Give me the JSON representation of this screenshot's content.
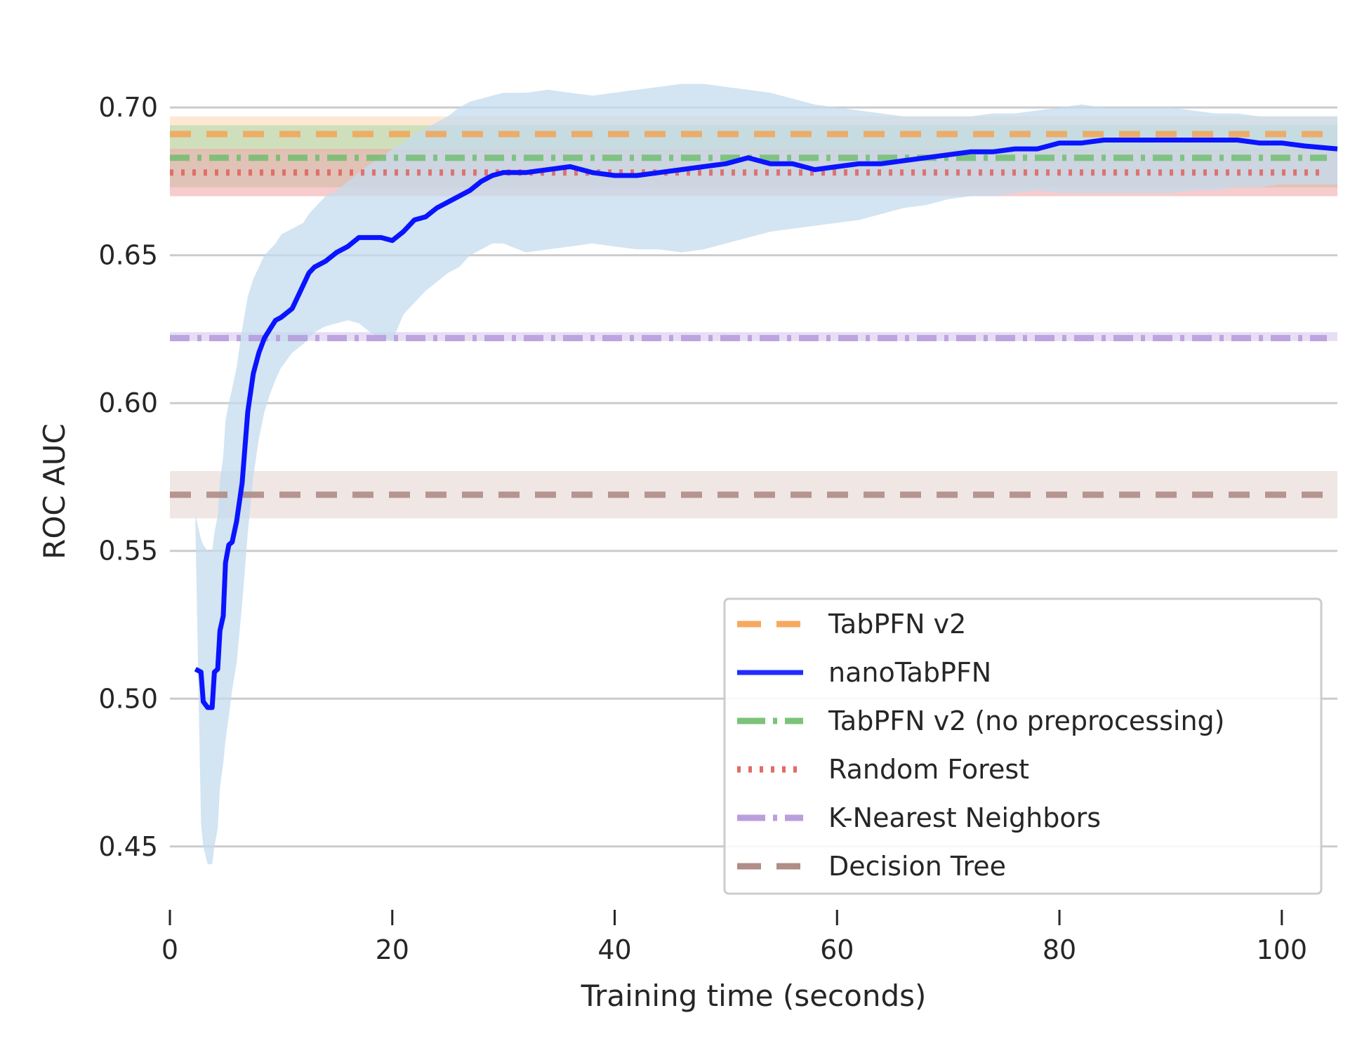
{
  "chart_data": {
    "type": "line",
    "title": "",
    "xlabel": "Training time (seconds)",
    "ylabel": "ROC AUC",
    "xlim": [
      0,
      105
    ],
    "ylim": [
      0.43,
      0.715
    ],
    "x_ticks": [
      0,
      20,
      40,
      60,
      80,
      100
    ],
    "x_tick_labels": [
      "0",
      "20",
      "40",
      "60",
      "80",
      "100"
    ],
    "y_ticks": [
      0.45,
      0.5,
      0.55,
      0.6,
      0.65,
      0.7
    ],
    "y_tick_labels": [
      "0.45",
      "0.50",
      "0.55",
      "0.60",
      "0.65",
      "0.70"
    ],
    "grid": "horizontal",
    "legend_position": "lower-right",
    "baselines": [
      {
        "name": "TabPFN v2",
        "value": 0.691,
        "band": [
          0.685,
          0.697
        ],
        "color": "#f5a04e",
        "band_color": "#fdd5b0",
        "dash": "dashed"
      },
      {
        "name": "TabPFN v2 (no preprocessing)",
        "value": 0.683,
        "band": [
          0.673,
          0.694
        ],
        "color": "#6bbd6a",
        "band_color": "#a8d7a8",
        "dash": "dashdot"
      },
      {
        "name": "Random Forest",
        "value": 0.678,
        "band": [
          0.67,
          0.686
        ],
        "color": "#e05a57",
        "band_color": "#f0a3a2",
        "dash": "dotted"
      },
      {
        "name": "K-Nearest Neighbors",
        "value": 0.622,
        "band": [
          0.621,
          0.624
        ],
        "color": "#b295d8",
        "band_color": "#d4c3ec",
        "dash": "dashdot"
      },
      {
        "name": "Decision Tree",
        "value": 0.569,
        "band": [
          0.561,
          0.577
        ],
        "color": "#a8817a",
        "band_color": "#e4d3cf",
        "dash": "dashed"
      }
    ],
    "series": [
      {
        "name": "nanoTabPFN",
        "color": "#0a14ff",
        "band_color": "#c4dbed",
        "x": [
          2.3,
          2.8,
          3.0,
          3.4,
          3.8,
          4.0,
          4.3,
          4.5,
          4.8,
          5.0,
          5.3,
          5.6,
          6.0,
          6.5,
          7.0,
          7.5,
          8.0,
          8.5,
          9.0,
          9.5,
          10,
          11,
          12,
          12.5,
          13,
          14,
          15,
          16,
          17,
          18,
          19,
          20,
          21,
          22,
          23,
          24,
          25,
          26,
          27,
          28,
          29,
          30,
          32,
          34,
          36,
          38,
          40,
          42,
          44,
          46,
          48,
          50,
          52,
          54,
          56,
          58,
          60,
          62,
          64,
          66,
          68,
          70,
          72,
          74,
          76,
          78,
          80,
          82,
          84,
          86,
          88,
          90,
          92,
          94,
          96,
          98,
          100,
          102,
          105
        ],
        "values": [
          0.51,
          0.509,
          0.499,
          0.497,
          0.497,
          0.509,
          0.51,
          0.523,
          0.528,
          0.546,
          0.552,
          0.553,
          0.56,
          0.573,
          0.597,
          0.61,
          0.617,
          0.622,
          0.625,
          0.628,
          0.629,
          0.632,
          0.64,
          0.644,
          0.646,
          0.648,
          0.651,
          0.653,
          0.656,
          0.656,
          0.656,
          0.655,
          0.658,
          0.662,
          0.663,
          0.666,
          0.668,
          0.67,
          0.672,
          0.675,
          0.677,
          0.678,
          0.678,
          0.679,
          0.68,
          0.678,
          0.677,
          0.677,
          0.678,
          0.679,
          0.68,
          0.681,
          0.683,
          0.681,
          0.681,
          0.679,
          0.68,
          0.681,
          0.681,
          0.682,
          0.683,
          0.684,
          0.685,
          0.685,
          0.686,
          0.686,
          0.688,
          0.688,
          0.689,
          0.689,
          0.689,
          0.689,
          0.689,
          0.689,
          0.689,
          0.688,
          0.688,
          0.687,
          0.686
        ],
        "lower": [
          0.558,
          0.458,
          0.45,
          0.444,
          0.444,
          0.45,
          0.456,
          0.47,
          0.478,
          0.486,
          0.494,
          0.503,
          0.512,
          0.532,
          0.556,
          0.575,
          0.588,
          0.597,
          0.603,
          0.608,
          0.612,
          0.617,
          0.62,
          0.622,
          0.624,
          0.626,
          0.627,
          0.628,
          0.627,
          0.624,
          0.622,
          0.621,
          0.63,
          0.634,
          0.638,
          0.641,
          0.644,
          0.646,
          0.65,
          0.652,
          0.654,
          0.654,
          0.651,
          0.652,
          0.653,
          0.654,
          0.653,
          0.652,
          0.652,
          0.651,
          0.652,
          0.654,
          0.656,
          0.658,
          0.659,
          0.66,
          0.661,
          0.662,
          0.664,
          0.666,
          0.667,
          0.669,
          0.67,
          0.67,
          0.671,
          0.672,
          0.671,
          0.671,
          0.671,
          0.671,
          0.671,
          0.671,
          0.672,
          0.672,
          0.673,
          0.673,
          0.674,
          0.674,
          0.674
        ],
        "upper": [
          0.562,
          0.554,
          0.552,
          0.55,
          0.55,
          0.556,
          0.562,
          0.574,
          0.582,
          0.594,
          0.6,
          0.605,
          0.612,
          0.625,
          0.636,
          0.642,
          0.646,
          0.65,
          0.652,
          0.654,
          0.657,
          0.659,
          0.661,
          0.664,
          0.666,
          0.67,
          0.672,
          0.675,
          0.678,
          0.681,
          0.683,
          0.686,
          0.688,
          0.691,
          0.693,
          0.695,
          0.697,
          0.7,
          0.702,
          0.703,
          0.704,
          0.705,
          0.705,
          0.706,
          0.705,
          0.704,
          0.705,
          0.706,
          0.707,
          0.708,
          0.708,
          0.707,
          0.706,
          0.705,
          0.703,
          0.701,
          0.7,
          0.699,
          0.698,
          0.697,
          0.697,
          0.697,
          0.697,
          0.698,
          0.698,
          0.699,
          0.7,
          0.701,
          0.7,
          0.7,
          0.7,
          0.7,
          0.699,
          0.698,
          0.698,
          0.697,
          0.697,
          0.697,
          0.697
        ]
      }
    ],
    "legend": [
      {
        "label": "TabPFN v2",
        "color": "#f5a04e",
        "dash": "dashed"
      },
      {
        "label": "nanoTabPFN",
        "color": "#0a14ff",
        "dash": "solid"
      },
      {
        "label": "TabPFN v2 (no preprocessing)",
        "color": "#6bbd6a",
        "dash": "dashdot"
      },
      {
        "label": "Random Forest",
        "color": "#e05a57",
        "dash": "dotted"
      },
      {
        "label": "K-Nearest Neighbors",
        "color": "#b295d8",
        "dash": "dashdot"
      },
      {
        "label": "Decision Tree",
        "color": "#a8817a",
        "dash": "dashed"
      }
    ]
  }
}
